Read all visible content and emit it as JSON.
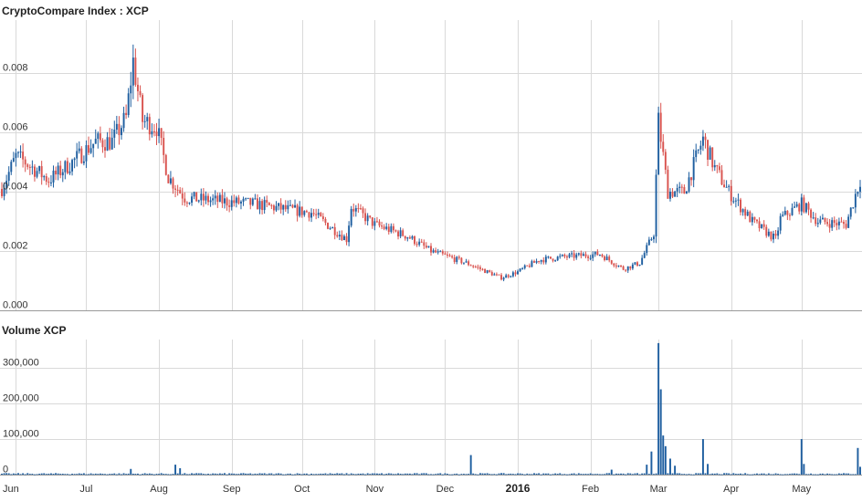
{
  "chart_data": [
    {
      "type": "candlestick",
      "title": "CryptoCompare Index : XCP",
      "ylim": [
        0,
        0.0098
      ],
      "y_ticks": [
        "0.000",
        "0.002",
        "0.004",
        "0.006",
        "0.008"
      ],
      "x_tick_labels": [
        "Jun",
        "Jul",
        "Aug",
        "Sep",
        "Oct",
        "Nov",
        "Dec",
        "2016",
        "Feb",
        "Mar",
        "Apr",
        "May"
      ],
      "x_range": [
        "2015-05-26",
        "2016-05-26"
      ],
      "grid": true,
      "colors": {
        "up": "#1f5fa0",
        "down": "#d9534f"
      },
      "close_anchors": [
        [
          "2015-05-26",
          0.0041
        ],
        [
          "2015-06-01",
          0.0052
        ],
        [
          "2015-06-05",
          0.005
        ],
        [
          "2015-06-15",
          0.0044
        ],
        [
          "2015-06-25",
          0.005
        ],
        [
          "2015-07-05",
          0.0057
        ],
        [
          "2015-07-12",
          0.0057
        ],
        [
          "2015-07-18",
          0.0065
        ],
        [
          "2015-07-21",
          0.0084
        ],
        [
          "2015-07-25",
          0.0064
        ],
        [
          "2015-07-31",
          0.0062
        ],
        [
          "2015-08-05",
          0.0045
        ],
        [
          "2015-08-12",
          0.0038
        ],
        [
          "2015-08-25",
          0.0037
        ],
        [
          "2015-09-10",
          0.0036
        ],
        [
          "2015-09-25",
          0.0034
        ],
        [
          "2015-10-05",
          0.0033
        ],
        [
          "2015-10-20",
          0.0024
        ],
        [
          "2015-10-22",
          0.0035
        ],
        [
          "2015-11-01",
          0.0029
        ],
        [
          "2015-11-15",
          0.0025
        ],
        [
          "2015-11-25",
          0.002
        ],
        [
          "2015-12-10",
          0.0016
        ],
        [
          "2015-12-25",
          0.0011
        ],
        [
          "2016-01-01",
          0.0013
        ],
        [
          "2016-01-10",
          0.0017
        ],
        [
          "2016-01-20",
          0.0018
        ],
        [
          "2016-02-05",
          0.0019
        ],
        [
          "2016-02-15",
          0.0014
        ],
        [
          "2016-02-22",
          0.0016
        ],
        [
          "2016-02-28",
          0.0026
        ],
        [
          "2016-03-01",
          0.0064
        ],
        [
          "2016-03-05",
          0.004
        ],
        [
          "2016-03-12",
          0.004
        ],
        [
          "2016-03-20",
          0.0058
        ],
        [
          "2016-03-25",
          0.0048
        ],
        [
          "2016-03-31",
          0.004
        ],
        [
          "2016-04-10",
          0.003
        ],
        [
          "2016-04-20",
          0.0024
        ],
        [
          "2016-04-22",
          0.0031
        ],
        [
          "2016-05-01",
          0.0036
        ],
        [
          "2016-05-08",
          0.003
        ],
        [
          "2016-05-20",
          0.0029
        ],
        [
          "2016-05-26",
          0.0044
        ]
      ]
    },
    {
      "type": "bar",
      "title": "Volume XCP",
      "ylim": [
        0,
        380000
      ],
      "y_ticks": [
        "0",
        "100,000",
        "200,000",
        "300,000"
      ],
      "color": "#1f5fa0",
      "baseline": 2500,
      "spikes": [
        [
          "2015-07-20",
          16000
        ],
        [
          "2015-08-08",
          28000
        ],
        [
          "2015-08-10",
          18000
        ],
        [
          "2015-12-12",
          55000
        ],
        [
          "2016-02-10",
          14000
        ],
        [
          "2016-02-25",
          28000
        ],
        [
          "2016-02-27",
          65000
        ],
        [
          "2016-03-01",
          370000
        ],
        [
          "2016-03-02",
          240000
        ],
        [
          "2016-03-03",
          110000
        ],
        [
          "2016-03-04",
          80000
        ],
        [
          "2016-03-06",
          45000
        ],
        [
          "2016-03-08",
          25000
        ],
        [
          "2016-03-20",
          100000
        ],
        [
          "2016-03-22",
          30000
        ],
        [
          "2016-05-01",
          100000
        ],
        [
          "2016-05-02",
          30000
        ],
        [
          "2016-05-25",
          75000
        ],
        [
          "2016-05-26",
          22000
        ]
      ]
    }
  ]
}
